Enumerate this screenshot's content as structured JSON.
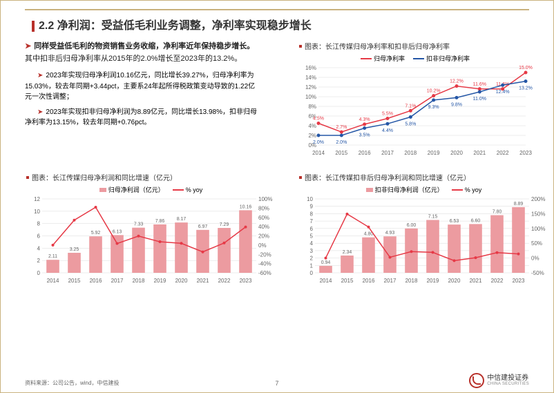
{
  "header": {
    "section": "2.2 净利润：受益低毛利业务调整，净利率实现稳步增长"
  },
  "intro": {
    "main": "同样受益低毛利的物资销售业务收缩，净利率近年保持稳步增长。",
    "tail": "其中扣非后归母净利率从2015年的2.0%增长至2023年的13.2%。",
    "bullets": [
      "2023年实现归母净利润10.16亿元，同比增长39.27%，归母净利率为15.03%，较去年同期+3.44pct，主要系24年起所得税政策变动导致的1.22亿元一次性调整；",
      "2023年实现扣非归母净利润为8.89亿元，同比增长13.98%，扣非归母净利率为13.15%，较去年同期+0.76pct。"
    ]
  },
  "chart1": {
    "title": "图表：长江传媒归母净利率和扣非后归母净利率",
    "legend": [
      "归母净利率",
      "扣非归母净利率"
    ],
    "years": [
      "2014",
      "2015",
      "2016",
      "2017",
      "2018",
      "2019",
      "2020",
      "2021",
      "2022",
      "2023"
    ],
    "s1": [
      4.5,
      2.7,
      4.3,
      5.5,
      7.1,
      10.2,
      12.2,
      11.6,
      11.6,
      15.0
    ],
    "s2": [
      2.0,
      2.0,
      3.5,
      4.4,
      5.8,
      9.3,
      9.8,
      11.0,
      12.4,
      13.2
    ],
    "ymin": 0,
    "ymax": 16,
    "ystep": 2,
    "c1": "#e63946",
    "c2": "#2456a6",
    "grid": "#d9d9d9",
    "bg": "#fff",
    "axis_fontsize": 8,
    "label_fontsize": 7
  },
  "chart2": {
    "title": "图表：长江传媒归母净利润和同比增速（亿元）",
    "legend": [
      "归母净利润（亿元）",
      "% yoy"
    ],
    "years": [
      "2014",
      "2015",
      "2016",
      "2017",
      "2018",
      "2019",
      "2020",
      "2021",
      "2022",
      "2023"
    ],
    "bars": [
      2.11,
      3.25,
      5.92,
      6.13,
      7.33,
      7.86,
      8.17,
      6.97,
      7.29,
      10.16
    ],
    "line": [
      0,
      54,
      82,
      3.5,
      19.6,
      7.2,
      3.9,
      -14.7,
      4.6,
      39.3
    ],
    "y1min": 0,
    "y1max": 12,
    "y1step": 2,
    "y2min": -60,
    "y2max": 100,
    "y2step": 20,
    "bar_color": "#ec9ba0",
    "line_color": "#e63946",
    "grid": "#d9d9d9",
    "axis_fontsize": 8
  },
  "chart3": {
    "title": "图表：长江传媒扣非后归母净利润和同比增速（亿元）",
    "legend": [
      "扣非归母净利润（亿元）",
      "% yoy"
    ],
    "years": [
      "2014",
      "2015",
      "2016",
      "2017",
      "2018",
      "2019",
      "2020",
      "2021",
      "2022",
      "2023"
    ],
    "bars": [
      0.94,
      2.34,
      4.8,
      4.93,
      6.0,
      7.15,
      6.53,
      6.6,
      7.8,
      8.89
    ],
    "line": [
      0,
      149,
      105,
      2.7,
      21.7,
      19.2,
      -8.7,
      1.1,
      18.2,
      14.0
    ],
    "y1min": 0,
    "y1max": 10,
    "y1step": 1,
    "y2min": -50,
    "y2max": 200,
    "y2step": 50,
    "bar_color": "#ec9ba0",
    "line_color": "#e63946",
    "grid": "#d9d9d9",
    "axis_fontsize": 8
  },
  "footer": {
    "source": "资料来源：公司公告，wind，中信建投",
    "page": "7",
    "logo": "中信建投证券",
    "logo_en": "CHINA SECURITIES"
  },
  "colors": {
    "accent": "#b8302a"
  }
}
